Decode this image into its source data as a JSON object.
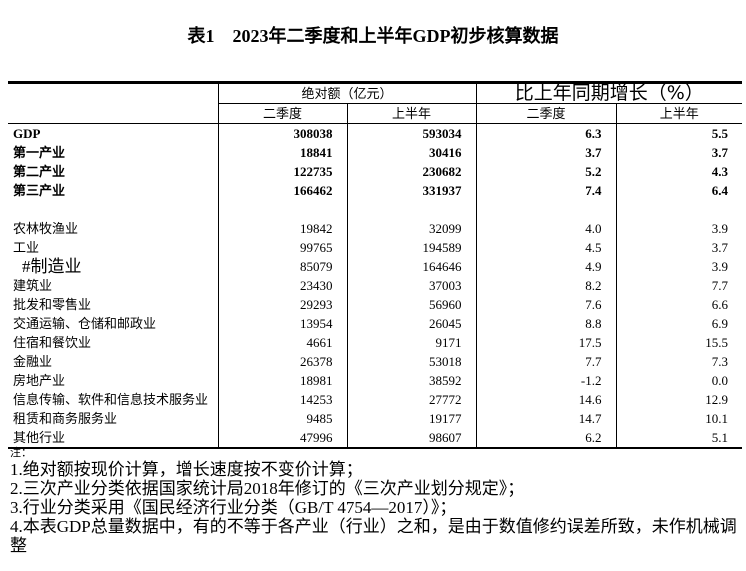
{
  "title": "表1　2023年二季度和上半年GDP初步核算数据",
  "header": {
    "absolute": "绝对额（亿元）",
    "growth": "比上年同期增长（%）",
    "q2": "二季度",
    "h1": "上半年"
  },
  "rows": [
    {
      "name": "GDP",
      "q2_abs": "308038",
      "h1_abs": "593034",
      "q2_g": "6.3",
      "h1_g": "5.5",
      "bold": true
    },
    {
      "name": "第一产业",
      "q2_abs": "18841",
      "h1_abs": "30416",
      "q2_g": "3.7",
      "h1_g": "3.7",
      "bold": true
    },
    {
      "name": "第二产业",
      "q2_abs": "122735",
      "h1_abs": "230682",
      "q2_g": "5.2",
      "h1_g": "4.3",
      "bold": true
    },
    {
      "name": "第三产业",
      "q2_abs": "166462",
      "h1_abs": "331937",
      "q2_g": "7.4",
      "h1_g": "6.4",
      "bold": true
    },
    {
      "name": "农林牧渔业",
      "q2_abs": "19842",
      "h1_abs": "32099",
      "q2_g": "4.0",
      "h1_g": "3.9"
    },
    {
      "name": "工业",
      "q2_abs": "99765",
      "h1_abs": "194589",
      "q2_g": "4.5",
      "h1_g": "3.7"
    },
    {
      "name": "#制造业",
      "q2_abs": "85079",
      "h1_abs": "164646",
      "q2_g": "4.9",
      "h1_g": "3.9"
    },
    {
      "name": "建筑业",
      "q2_abs": "23430",
      "h1_abs": "37003",
      "q2_g": "8.2",
      "h1_g": "7.7"
    },
    {
      "name": "批发和零售业",
      "q2_abs": "29293",
      "h1_abs": "56960",
      "q2_g": "7.6",
      "h1_g": "6.6"
    },
    {
      "name": "交通运输、仓储和邮政业",
      "q2_abs": "13954",
      "h1_abs": "26045",
      "q2_g": "8.8",
      "h1_g": "6.9"
    },
    {
      "name": "住宿和餐饮业",
      "q2_abs": "4661",
      "h1_abs": "9171",
      "q2_g": "17.5",
      "h1_g": "15.5"
    },
    {
      "name": "金融业",
      "q2_abs": "26378",
      "h1_abs": "53018",
      "q2_g": "7.7",
      "h1_g": "7.3"
    },
    {
      "name": "房地产业",
      "q2_abs": "18981",
      "h1_abs": "38592",
      "q2_g": "-1.2",
      "h1_g": "0.0"
    },
    {
      "name": "信息传输、软件和信息技术服务业",
      "q2_abs": "14253",
      "h1_abs": "27772",
      "q2_g": "14.6",
      "h1_g": "12.9"
    },
    {
      "name": "租赁和商务服务业",
      "q2_abs": "9485",
      "h1_abs": "19177",
      "q2_g": "14.7",
      "h1_g": "10.1"
    },
    {
      "name": "其他行业",
      "q2_abs": "47996",
      "h1_abs": "98607",
      "q2_g": "6.2",
      "h1_g": "5.1"
    }
  ],
  "notes": {
    "heading": "注：",
    "items": [
      "1.绝对额按现价计算，增长速度按不变价计算；",
      "2.三次产业分类依据国家统计局2018年修订的《三次产业划分规定》；",
      "3.行业分类采用《国民经济行业分类（GB/T 4754—2017）》；",
      "4.本表GDP总量数据中，有的不等于各产业（行业）之和，是由于数值修约误差所致，未作机械调整"
    ]
  }
}
